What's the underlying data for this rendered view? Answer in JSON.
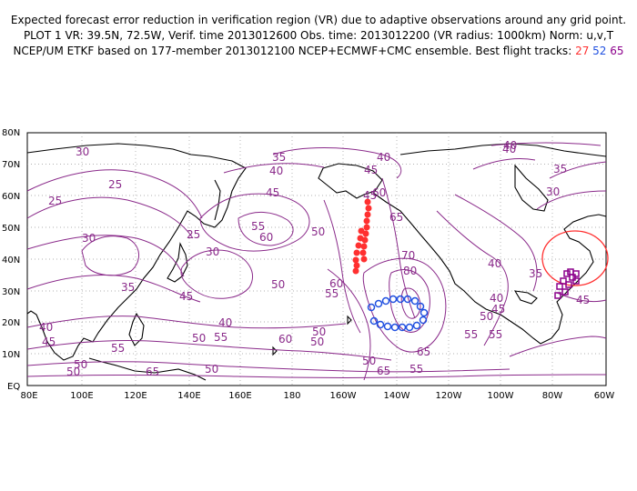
{
  "header": {
    "line1": "Expected forecast error reduction in verification region (VR) due to adaptive observations around any grid point.",
    "line2": "PLOT 1 VR: 39.5N, 72.5W, Verif. time 2013012600 Obs. time: 2013012200 (VR radius: 1000km) Norm: u,v,T",
    "line3_prefix": "NCEP/UM ETKF based on 177-member 2013012100 NCEP+ECMWF+CMC ensemble. Best flight tracks:",
    "track1": "27",
    "track2": "52",
    "track3": "65"
  },
  "axes": {
    "lat_labels": [
      "80N",
      "70N",
      "60N",
      "50N",
      "40N",
      "30N",
      "20N",
      "10N",
      "EQ"
    ],
    "lon_labels": [
      "80E",
      "100E",
      "120E",
      "140E",
      "160E",
      "180",
      "160W",
      "140W",
      "120W",
      "100W",
      "80W",
      "60W"
    ]
  },
  "contour_labels": [
    "35",
    "40",
    "45",
    "40",
    "45",
    "40",
    "30",
    "25",
    "25",
    "45",
    "60",
    "65",
    "50",
    "55",
    "60",
    "30",
    "25",
    "30",
    "35",
    "45",
    "40",
    "35",
    "50",
    "55",
    "60",
    "70",
    "80",
    "40",
    "45",
    "50",
    "55",
    "40",
    "45",
    "40",
    "50",
    "55",
    "60",
    "50",
    "50",
    "65",
    "55",
    "50",
    "55",
    "65",
    "50",
    "50",
    "65",
    "55",
    "40",
    "30",
    "35",
    "45",
    "50"
  ],
  "colors": {
    "contour": "#8a2a8a",
    "grid": "#888888",
    "track_27": "#ff3030",
    "track_52": "#2050e0",
    "track_65": "#8c008c",
    "verification_region": "#ff3030"
  }
}
